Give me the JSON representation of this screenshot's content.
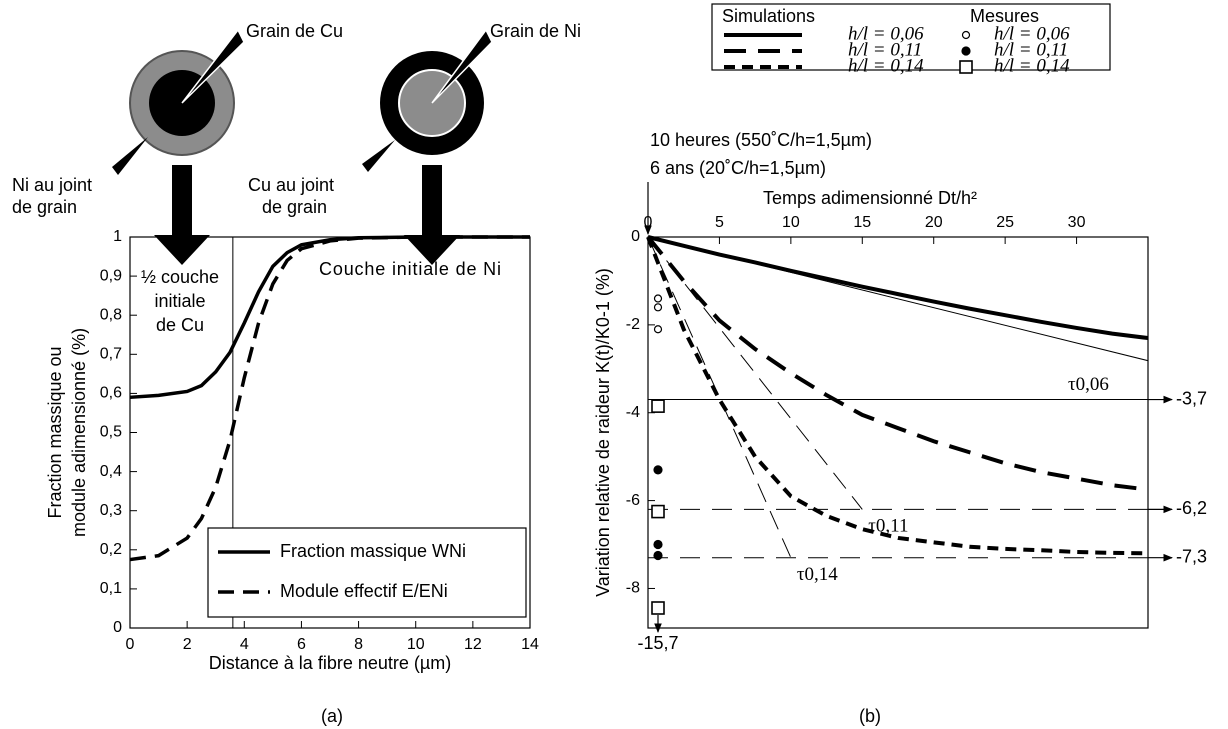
{
  "diagram": {
    "grain_cu": "Grain de Cu",
    "grain_ni": "Grain de Ni",
    "ni_joint": [
      "Ni au joint",
      "de grain"
    ],
    "cu_joint": [
      "Cu au joint",
      "de grain"
    ]
  },
  "chart_data": [
    {
      "type": "line",
      "caption": "(a)",
      "xlabel": "Distance à la fibre neutre (µm)",
      "ylabel": [
        "Fraction massique ou",
        "module adimensionné (%)"
      ],
      "x": [
        0,
        1,
        2,
        2.5,
        3,
        3.5,
        4,
        4.5,
        5,
        5.5,
        6,
        7,
        8,
        10,
        12,
        14
      ],
      "series": [
        {
          "name": "Fraction massique WNi",
          "color": "#000000",
          "dash": "solid",
          "values": [
            0.59,
            0.595,
            0.605,
            0.62,
            0.655,
            0.705,
            0.78,
            0.86,
            0.925,
            0.96,
            0.98,
            0.993,
            0.998,
            1,
            1,
            1
          ]
        },
        {
          "name": "Module effectif E/ENi",
          "color": "#000000",
          "dash": "dashed",
          "values": [
            0.175,
            0.185,
            0.23,
            0.28,
            0.36,
            0.48,
            0.64,
            0.78,
            0.88,
            0.94,
            0.97,
            0.99,
            0.997,
            1,
            1,
            1
          ]
        }
      ],
      "xlim": [
        0,
        14
      ],
      "xticks": [
        0,
        2,
        4,
        6,
        8,
        10,
        12,
        14
      ],
      "ylim": [
        0,
        1
      ],
      "yticks": [
        0,
        {
          "value": 0.1,
          "label": "0,1"
        },
        {
          "value": 0.2,
          "label": "0,2"
        },
        {
          "value": 0.3,
          "label": "0,3"
        },
        {
          "value": 0.4,
          "label": "0,4"
        },
        {
          "value": 0.5,
          "label": "0,5"
        },
        {
          "value": 0.6,
          "label": "0,6"
        },
        {
          "value": 0.7,
          "label": "0,7"
        },
        {
          "value": 0.8,
          "label": "0,8"
        },
        {
          "value": 0.9,
          "label": "0,9"
        },
        1
      ],
      "boundary_x": 3.6,
      "region_left": [
        "½ couche",
        "initiale",
        "de Cu"
      ],
      "region_right": "Couche initiale de Ni",
      "legend": "bottom-right"
    },
    {
      "type": "line",
      "caption": "(b)",
      "xlabel": "Temps adimensionné Dt/h²",
      "ylabel": "Variation relative de raideur K(t)/K0-1 (%)",
      "time_notes": [
        "10 heures (550˚C/h=1,5µm)",
        "6 ans (20˚C/h=1,5µm)"
      ],
      "legend_titles": [
        "Simulations",
        "Mesures"
      ],
      "x": [
        0,
        2.5,
        5,
        7.5,
        10,
        12.5,
        15,
        17.5,
        20,
        22.5,
        25,
        27.5,
        30,
        32.5,
        35
      ],
      "series": [
        {
          "name": "h/l = 0,06",
          "color": "#000000",
          "dash": "solid",
          "values": [
            0,
            -0.2,
            -0.4,
            -0.58,
            -0.77,
            -0.95,
            -1.13,
            -1.3,
            -1.47,
            -1.63,
            -1.78,
            -1.93,
            -2.07,
            -2.2,
            -2.3
          ]
        },
        {
          "name": "h/l = 0,11",
          "color": "#000000",
          "dash": "long",
          "values": [
            0,
            -1.0,
            -1.9,
            -2.55,
            -3.1,
            -3.6,
            -4.05,
            -4.35,
            -4.65,
            -4.9,
            -5.15,
            -5.35,
            -5.5,
            -5.65,
            -5.75
          ]
        },
        {
          "name": "h/l = 0,14",
          "color": "#000000",
          "dash": "short",
          "values": [
            0,
            -2.1,
            -3.7,
            -5.0,
            -5.9,
            -6.35,
            -6.65,
            -6.85,
            -6.95,
            -7.05,
            -7.1,
            -7.13,
            -7.17,
            -7.19,
            -7.2
          ]
        }
      ],
      "measures": [
        {
          "name": "h/l = 0,06",
          "marker": "open-circle",
          "x": [
            0.7,
            0.7,
            0.7
          ],
          "values": [
            -1.4,
            -1.6,
            -2.1
          ]
        },
        {
          "name": "h/l = 0,11",
          "marker": "filled-circle",
          "x": [
            0.7,
            0.7,
            0.7
          ],
          "values": [
            -5.3,
            -7.0,
            -7.25
          ]
        },
        {
          "name": "h/l = 0,14",
          "marker": "square",
          "x": [
            0.7,
            0.7,
            0.7
          ],
          "values": [
            -3.85,
            -6.25,
            -15.7
          ],
          "value_labels": [
            null,
            null,
            "-15,7"
          ]
        }
      ],
      "asymptotes": [
        {
          "value": -3.7,
          "label": "-3,7",
          "tau": 46,
          "tau_label": "τ0,06",
          "dash": "solid"
        },
        {
          "value": -6.2,
          "label": "-6,2",
          "tau": 15,
          "tau_label": "τ0,11",
          "dash": "long"
        },
        {
          "value": -7.3,
          "label": "-7,3",
          "tau": 10,
          "tau_label": "τ0,14",
          "dash": "long"
        }
      ],
      "xlim": [
        0,
        35
      ],
      "xticks": [
        0,
        5,
        10,
        15,
        20,
        25,
        30
      ],
      "ylim": [
        -8.9,
        0
      ],
      "yticks": [
        0,
        -2,
        -4,
        -6,
        -8
      ]
    }
  ]
}
